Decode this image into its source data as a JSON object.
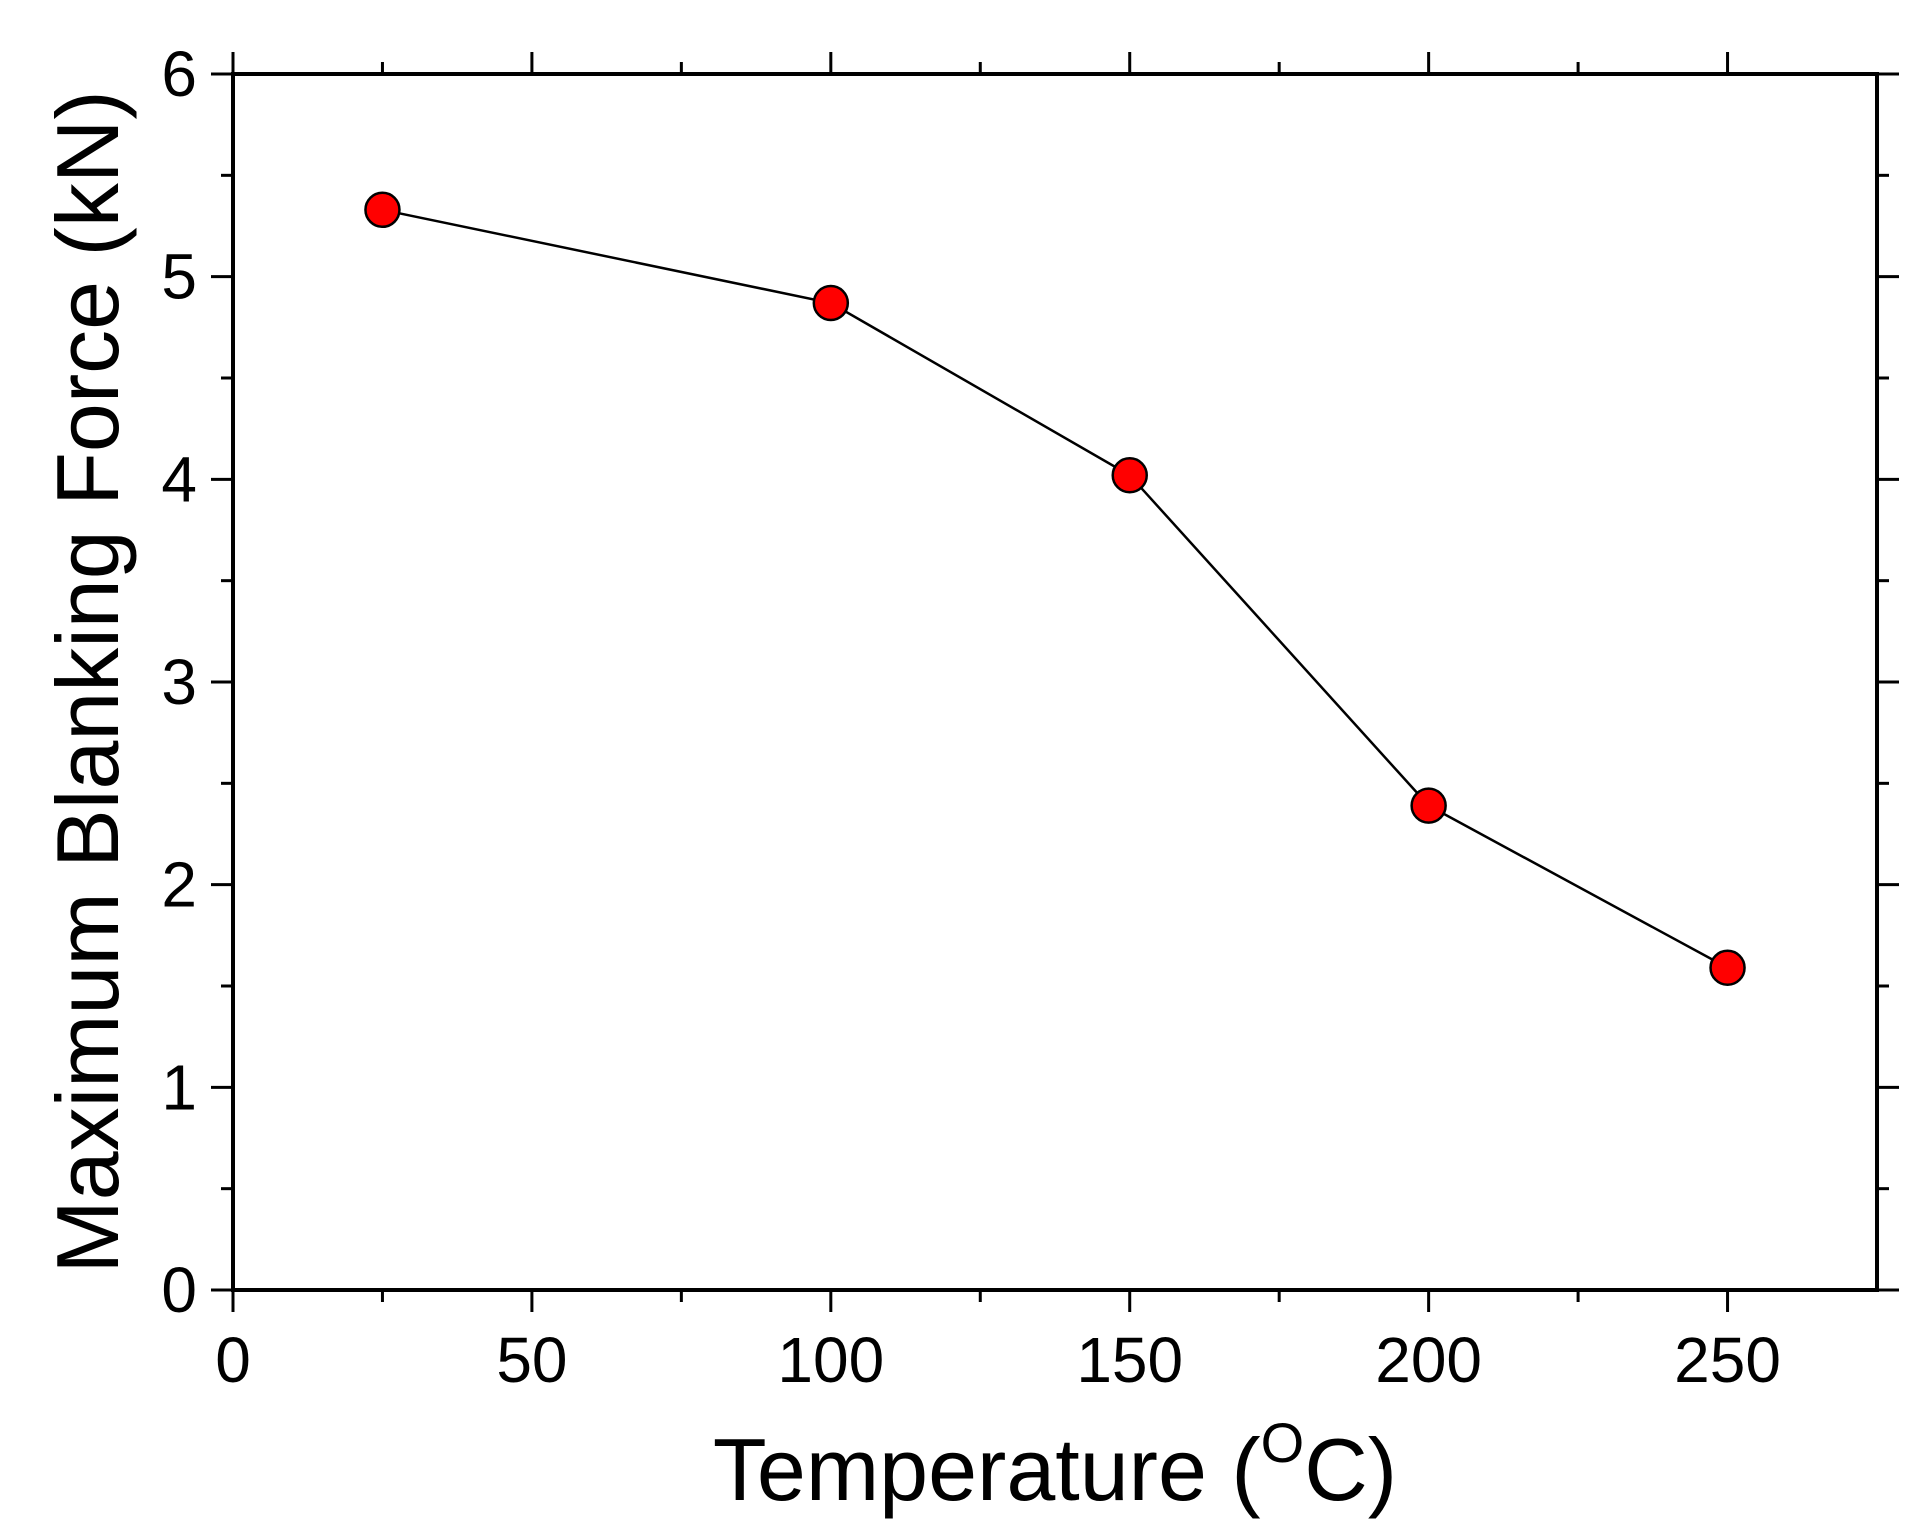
{
  "chart_data": {
    "type": "line",
    "title": "",
    "xlabel": "Temperature (",
    "xlabel_superscript": "O",
    "xlabel_suffix": "C)",
    "ylabel": "Maximum Blanking Force (kN)",
    "xlim": [
      0,
      275
    ],
    "ylim": [
      0,
      6
    ],
    "x_ticks": [
      0,
      50,
      100,
      150,
      200,
      250
    ],
    "y_ticks": [
      0,
      1,
      2,
      3,
      4,
      5,
      6
    ],
    "x_minor_step": 25,
    "y_minor_step": 0.5,
    "grid": false,
    "series": [
      {
        "name": "Maximum Blanking Force",
        "x": [
          25,
          100,
          150,
          200,
          250
        ],
        "values": [
          5.33,
          4.87,
          4.02,
          2.39,
          1.59
        ],
        "marker": "circle",
        "marker_color": "#ff0000",
        "line_color": "#000000"
      }
    ]
  }
}
